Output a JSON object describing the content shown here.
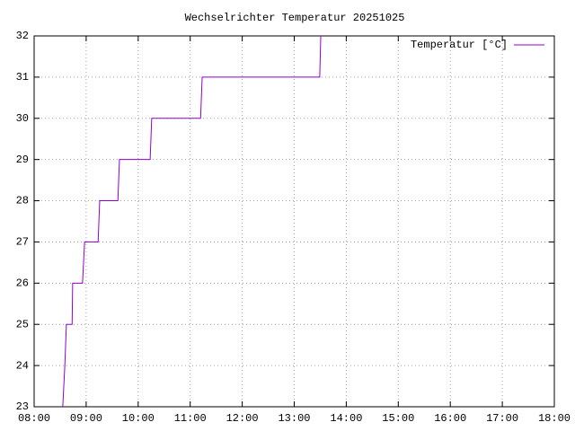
{
  "chart_data": {
    "type": "line",
    "title": "Wechselrichter Temperatur 20251025",
    "x": [
      8.55,
      8.59,
      8.62,
      8.73,
      8.74,
      8.93,
      8.97,
      9.23,
      9.26,
      9.61,
      9.64,
      10.23,
      10.26,
      11.2,
      11.23,
      13.49,
      13.51
    ],
    "series": [
      {
        "name": "Temperatur [°C]",
        "color": "#9400d3",
        "values": [
          23,
          24,
          25,
          25,
          26,
          26,
          27,
          27,
          28,
          28,
          29,
          29,
          30,
          30,
          31,
          31,
          32
        ]
      }
    ],
    "xlim": [
      8,
      18
    ],
    "xticks": [
      {
        "value": 8,
        "label": "08:00"
      },
      {
        "value": 9,
        "label": "09:00"
      },
      {
        "value": 10,
        "label": "10:00"
      },
      {
        "value": 11,
        "label": "11:00"
      },
      {
        "value": 12,
        "label": "12:00"
      },
      {
        "value": 13,
        "label": "13:00"
      },
      {
        "value": 14,
        "label": "14:00"
      },
      {
        "value": 15,
        "label": "15:00"
      },
      {
        "value": 16,
        "label": "16:00"
      },
      {
        "value": 17,
        "label": "17:00"
      },
      {
        "value": 18,
        "label": "18:00"
      }
    ],
    "ylim": [
      23,
      32
    ],
    "yticks": [
      23,
      24,
      25,
      26,
      27,
      28,
      29,
      30,
      31,
      32
    ],
    "grid": true,
    "legend": "top-right"
  }
}
